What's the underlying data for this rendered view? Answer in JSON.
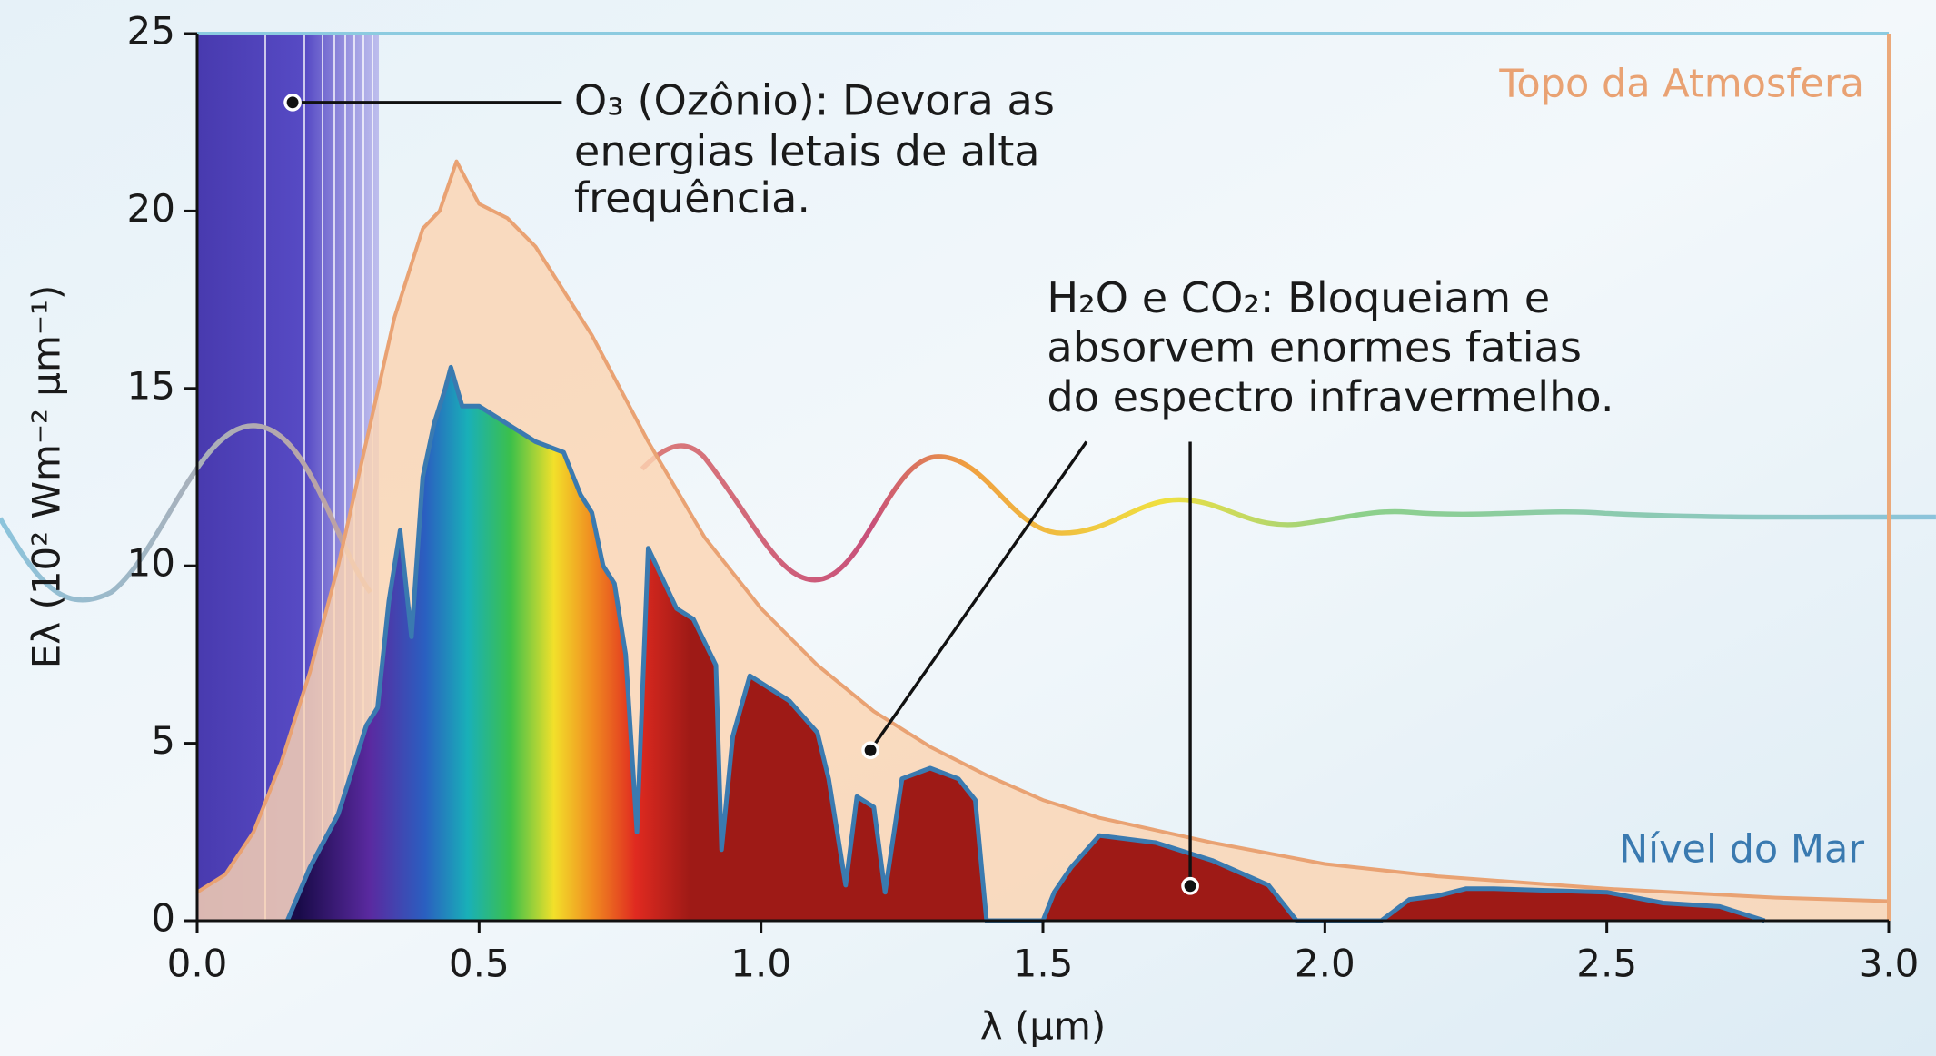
{
  "chart_data": {
    "type": "area",
    "xlabel": "λ (μm)",
    "ylabel": "Eλ (10² Wm⁻² μm⁻¹)",
    "xlim": [
      0,
      3
    ],
    "ylim": [
      0,
      25
    ],
    "xticks": [
      {
        "value": 0,
        "label": "0.0"
      },
      0.5,
      {
        "value": 1,
        "label": "1.0"
      },
      1.5,
      {
        "value": 2,
        "label": "2.0"
      },
      2.5,
      {
        "value": 3,
        "label": "3.0"
      }
    ],
    "yticks": [
      0,
      5,
      10,
      15,
      20,
      25
    ],
    "series": [
      {
        "name": "Topo da Atmosfera",
        "color": "#e9a273",
        "x": [
          0.0,
          0.05,
          0.1,
          0.15,
          0.2,
          0.25,
          0.3,
          0.35,
          0.4,
          0.43,
          0.46,
          0.5,
          0.55,
          0.6,
          0.7,
          0.8,
          0.9,
          1.0,
          1.1,
          1.2,
          1.3,
          1.4,
          1.5,
          1.6,
          1.8,
          2.0,
          2.2,
          2.5,
          2.8,
          3.0
        ],
        "values": [
          0.8,
          1.3,
          2.5,
          4.5,
          7,
          10,
          13.5,
          17,
          19.5,
          20,
          21.4,
          20.2,
          19.8,
          19,
          16.5,
          13.5,
          10.8,
          8.8,
          7.2,
          5.9,
          4.9,
          4.1,
          3.4,
          2.9,
          2.2,
          1.6,
          1.25,
          0.9,
          0.65,
          0.55
        ]
      },
      {
        "name": "Nível do Mar",
        "color": "#3a7ab0",
        "x": [
          0.16,
          0.2,
          0.25,
          0.3,
          0.32,
          0.34,
          0.36,
          0.38,
          0.4,
          0.42,
          0.44,
          0.45,
          0.47,
          0.5,
          0.55,
          0.6,
          0.65,
          0.68,
          0.7,
          0.72,
          0.74,
          0.76,
          0.78,
          0.8,
          0.85,
          0.88,
          0.92,
          0.93,
          0.95,
          0.98,
          1.05,
          1.1,
          1.12,
          1.14,
          1.15,
          1.17,
          1.2,
          1.22,
          1.25,
          1.3,
          1.35,
          1.38,
          1.4,
          1.5,
          1.52,
          1.55,
          1.6,
          1.7,
          1.8,
          1.9,
          1.95,
          2.1,
          2.15,
          2.2,
          2.25,
          2.3,
          2.5,
          2.6,
          2.7,
          2.78
        ],
        "values": [
          0,
          1.5,
          3,
          5.5,
          6,
          9,
          11,
          8,
          12.5,
          14,
          15,
          15.6,
          14.5,
          14.5,
          14,
          13.5,
          13.2,
          12,
          11.5,
          10,
          9.5,
          7.5,
          2.5,
          10.5,
          8.8,
          8.5,
          7.2,
          2,
          5.2,
          6.9,
          6.2,
          5.3,
          4,
          2,
          1,
          3.5,
          3.2,
          0.8,
          4,
          4.3,
          4,
          3.4,
          0,
          0,
          0.8,
          1.5,
          2.4,
          2.2,
          1.7,
          1,
          0,
          0,
          0.6,
          0.7,
          0.9,
          0.9,
          0.8,
          0.5,
          0.4,
          0
        ]
      }
    ],
    "annotations": [
      {
        "lines": [
          "O₃ (Ozônio): Devora as",
          "energias letais de alta",
          "frequência."
        ]
      },
      {
        "lines": [
          "H₂O e CO₂: Bloqueiam e",
          "absorvem enormes fatias",
          "do espectro infravermelho."
        ]
      }
    ]
  }
}
